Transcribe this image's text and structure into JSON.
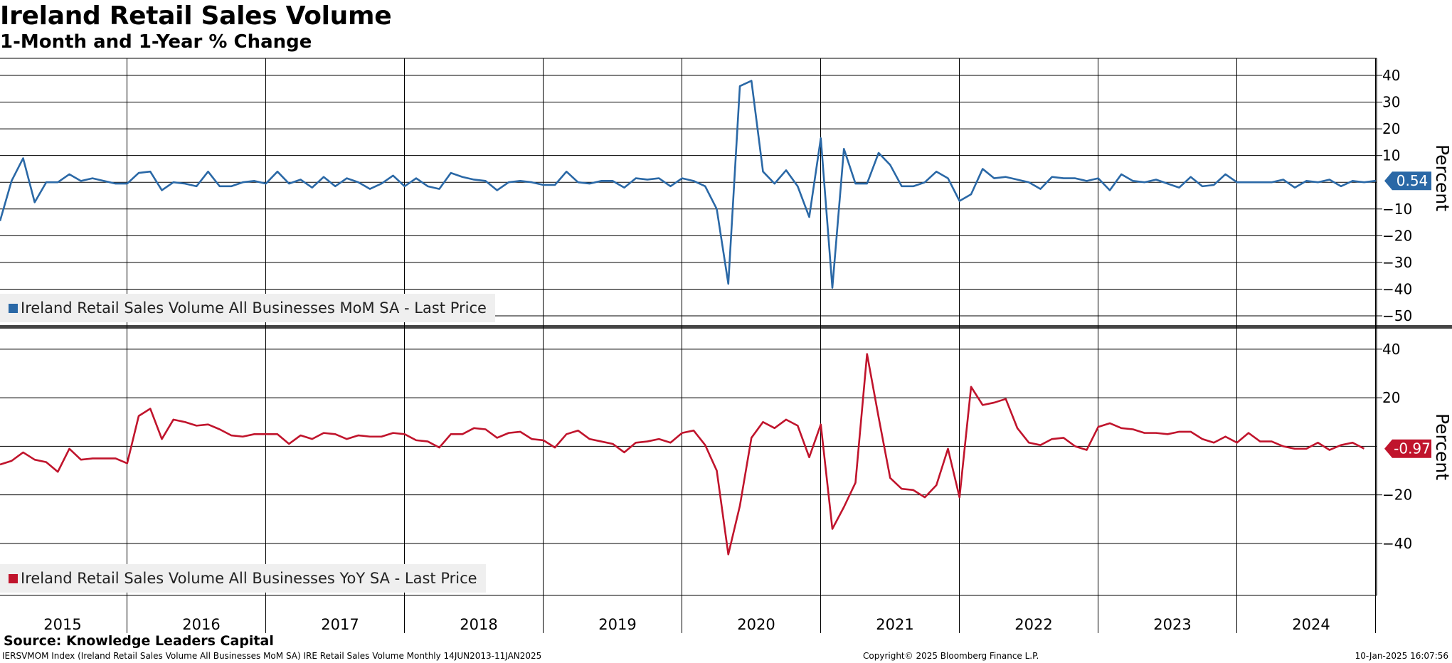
{
  "title": "Ireland Retail Sales Volume",
  "subtitle": "1-Month and 1-Year % Change",
  "source": "Source: Knowledge Leaders Capital",
  "footer": {
    "left": "IERSVMOM Index (Ireland Retail Sales Volume All Businesses MoM SA) IRE Retail Sales Volume  Monthly 14JUN2013-11JAN2025",
    "center": "Copyright© 2025 Bloomberg Finance L.P.",
    "right": "10-Jan-2025 16:07:56"
  },
  "chart_data": [
    {
      "type": "line",
      "x_start": "2014-11",
      "frequency": "monthly",
      "ylabel": "Percent",
      "ylim": [
        -50,
        40
      ],
      "yticks": [
        40,
        30,
        20,
        10,
        -10,
        -20,
        -30,
        -40,
        -50
      ],
      "grid": true,
      "legend_position": "bottom-left",
      "last_value_label": "0.54",
      "series": [
        {
          "name": "Ireland Retail Sales Volume All Businesses MoM SA - Last Price",
          "color": "#2a68a6",
          "values": [
            -14.5,
            0.5,
            9,
            -7.5,
            0,
            0,
            3,
            0.5,
            1.5,
            0.5,
            -0.5,
            -0.5,
            3.5,
            4,
            -3,
            0,
            -0.5,
            -1.5,
            4,
            -1.5,
            -1.5,
            0,
            0.5,
            -0.5,
            4,
            -0.5,
            1,
            -2,
            2,
            -1.5,
            1.5,
            0,
            -2.5,
            -0.5,
            2.5,
            -1.5,
            1.5,
            -1.5,
            -2.5,
            3.5,
            2,
            1,
            0.5,
            -3,
            0,
            0.5,
            0,
            -1,
            -1,
            4,
            0,
            -0.5,
            0.5,
            0.5,
            -2,
            1.5,
            1,
            1.5,
            -1.5,
            1.5,
            0.5,
            -1.5,
            -10,
            -38,
            36,
            38,
            4,
            -0.5,
            4.5,
            -1.5,
            -13,
            16.5,
            -39.5,
            12.5,
            -0.5,
            -0.5,
            11,
            6.5,
            -1.5,
            -1.5,
            0,
            4,
            1.5,
            -7,
            -4.5,
            5,
            1.5,
            2,
            1,
            0,
            -2.5,
            2,
            1.5,
            1.5,
            0.5,
            1.5,
            -3,
            3,
            0.5,
            0,
            1,
            -0.5,
            -2,
            2,
            -1.5,
            -1,
            3,
            0,
            0,
            0,
            0,
            1,
            -2,
            0.5,
            0,
            1,
            -1.5,
            0.5,
            0,
            0.54
          ]
        }
      ]
    },
    {
      "type": "line",
      "x_start": "2014-11",
      "frequency": "monthly",
      "ylabel": "Percent",
      "ylim": [
        -57,
        42
      ],
      "yticks": [
        40,
        20,
        -20,
        -40
      ],
      "grid": true,
      "legend_position": "bottom-left",
      "last_value_label": "-0.97",
      "series": [
        {
          "name": "Ireland Retail Sales Volume All Businesses YoY SA - Last Price",
          "color": "#c0142c",
          "values": [
            -7.5,
            -6,
            -2.5,
            -5.5,
            -6.5,
            -10.5,
            -1,
            -5.5,
            -5,
            -5,
            -5,
            -7,
            12.5,
            15.5,
            3,
            11,
            10,
            8.5,
            9,
            7,
            4.5,
            4,
            5,
            5,
            5,
            1,
            4.5,
            3,
            5.5,
            5,
            3,
            4.5,
            4,
            4,
            5.5,
            5,
            2.5,
            2,
            -0.5,
            5,
            5,
            7.5,
            7,
            3.5,
            5.5,
            6,
            3,
            2.5,
            -0.5,
            5,
            6.5,
            3,
            2,
            1,
            -2.5,
            1.5,
            2,
            3,
            1.5,
            5.5,
            6.5,
            0.5,
            -10,
            -44.5,
            -24.5,
            3.5,
            10,
            7.5,
            11,
            8.5,
            -4.5,
            9,
            -34,
            -25,
            -15,
            38,
            12,
            -13,
            -17.5,
            -18,
            -21,
            -16,
            -1,
            -21,
            24.5,
            17,
            18,
            19.5,
            7.5,
            1.5,
            0.5,
            3,
            3.5,
            0,
            -1.5,
            8,
            9.5,
            7.5,
            7,
            5.5,
            5.5,
            5,
            6,
            6,
            3,
            1.5,
            4,
            1.5,
            5.5,
            2,
            2,
            0,
            -1,
            -1,
            1.5,
            -1.5,
            0.5,
            1.5,
            -0.97
          ]
        }
      ]
    }
  ],
  "x_tick_labels": [
    "2015",
    "2016",
    "2017",
    "2018",
    "2019",
    "2020",
    "2021",
    "2022",
    "2023",
    "2024"
  ]
}
